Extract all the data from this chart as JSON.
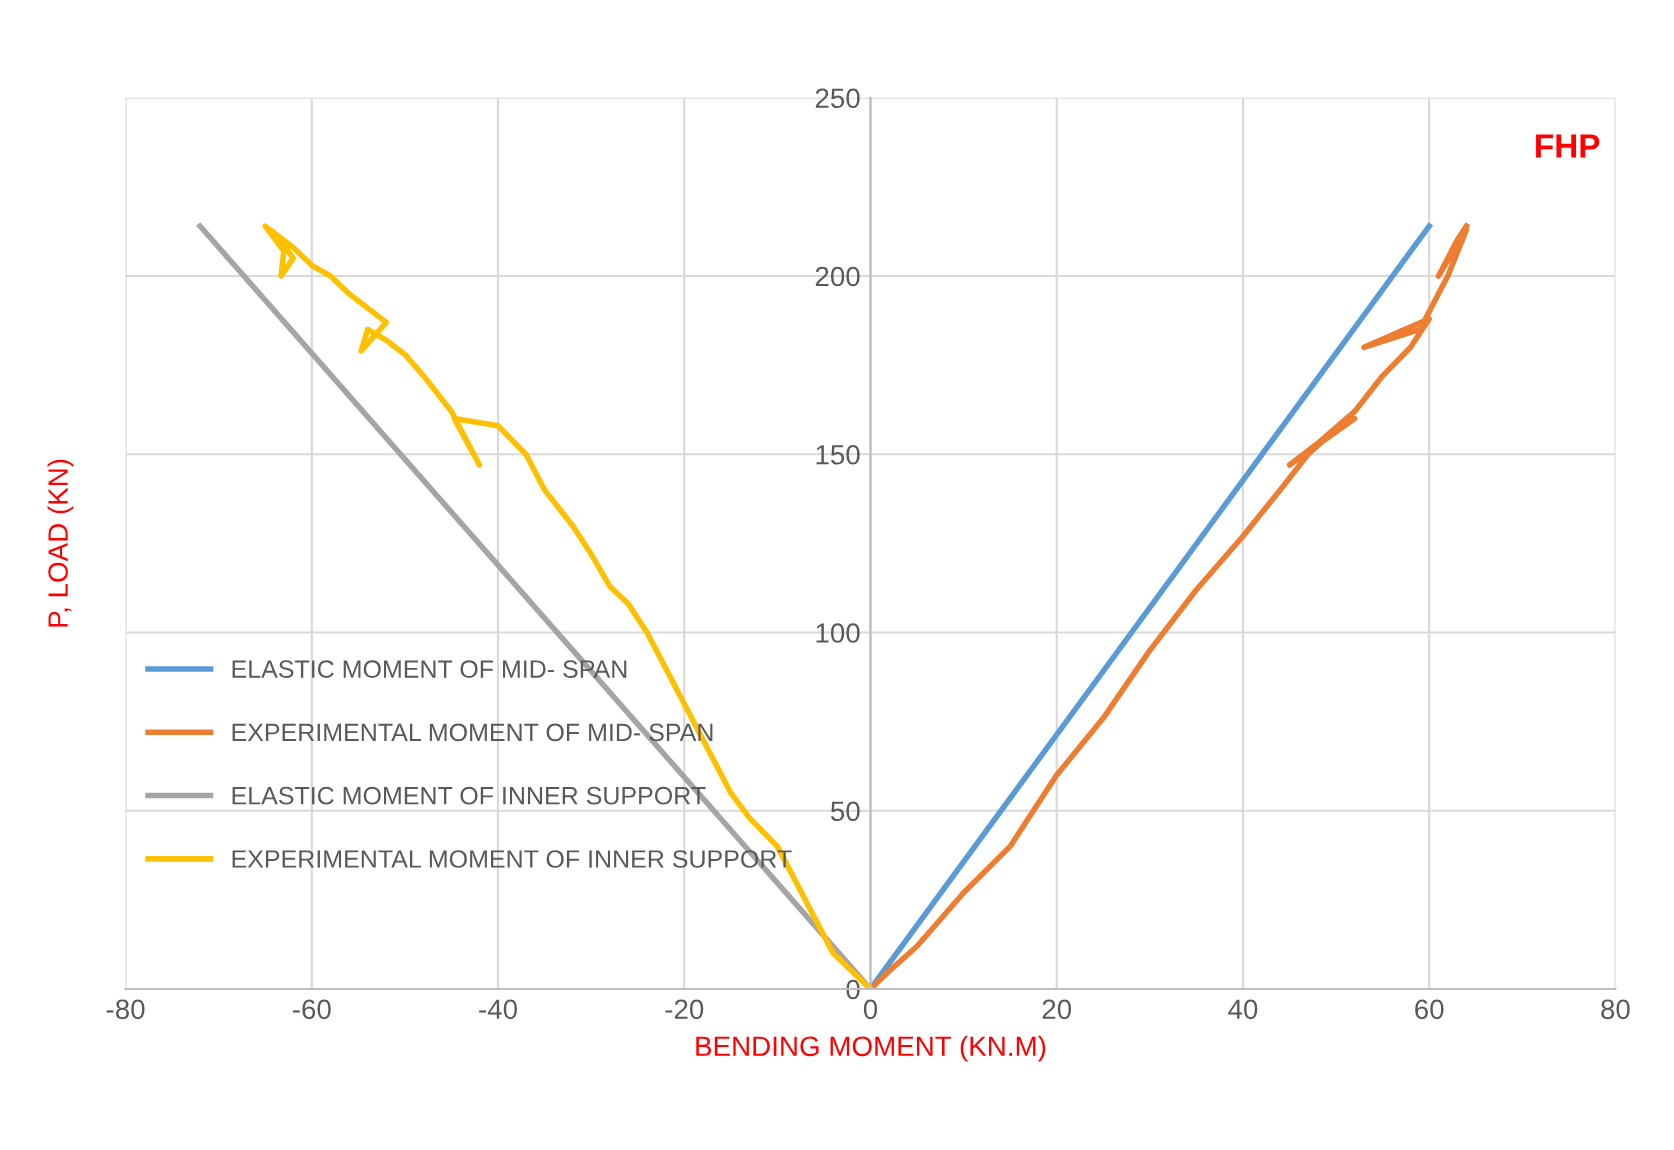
{
  "chart_data": {
    "type": "line",
    "xlabel": "BENDING MOMENT (KN.M)",
    "ylabel": "P, LOAD (KN)",
    "annotations": [
      "FHP"
    ],
    "xlim": [
      -80,
      80
    ],
    "xticks": [
      -80,
      -60,
      -40,
      -20,
      0,
      20,
      40,
      60,
      80
    ],
    "ylim": [
      0,
      250
    ],
    "yticks": [
      0,
      50,
      100,
      150,
      200,
      250
    ],
    "grid": true,
    "legend": "left",
    "marker": "none",
    "line_style": "solid",
    "series": [
      {
        "name": "ELASTIC MOMENT OF MID- SPAN",
        "color": "#5b9bd5",
        "x": [
          0,
          60
        ],
        "values": [
          0,
          214
        ]
      },
      {
        "name": "EXPERIMENTAL MOMENT OF MID- SPAN",
        "color": "#ed7d31",
        "x": [
          0,
          2,
          5,
          10,
          15,
          20,
          25,
          30,
          35,
          40,
          44,
          47,
          50,
          52,
          45,
          48,
          52,
          55,
          58,
          60,
          53,
          59,
          61,
          62,
          64,
          61,
          63,
          64
        ],
        "values": [
          0,
          5,
          12,
          27,
          40,
          60,
          76,
          95,
          112,
          127,
          140,
          150,
          157,
          160,
          147,
          153,
          162,
          172,
          180,
          188,
          180,
          185,
          195,
          200,
          213,
          200,
          210,
          214
        ]
      },
      {
        "name": "ELASTIC MOMENT OF INNER SUPPORT",
        "color": "#a5a5a5",
        "x": [
          0,
          -72
        ],
        "values": [
          0,
          214
        ]
      },
      {
        "name": "EXPERIMENTAL MOMENT OF INNER SUPPORT",
        "color": "#ffc000",
        "x": [
          0,
          -2,
          -4,
          -6,
          -8,
          -10,
          -13,
          -15,
          -18,
          -20,
          -22,
          -24,
          -26,
          -28,
          -30,
          -32,
          -35,
          -37,
          -40,
          -44.7,
          -42,
          -45,
          -48,
          -50,
          -52,
          -54,
          -54.7,
          -52,
          -56,
          -58,
          -60,
          -62,
          -65,
          -63,
          -63.3,
          -62,
          -64
        ],
        "values": [
          0,
          5,
          10,
          20,
          30,
          40,
          48,
          55,
          70,
          80,
          90,
          100,
          108,
          113,
          122,
          130,
          140,
          150,
          158,
          160,
          147,
          162,
          172,
          178,
          182,
          185,
          179,
          187,
          195,
          200,
          203,
          208,
          214,
          207,
          200,
          205,
          212
        ]
      }
    ]
  }
}
